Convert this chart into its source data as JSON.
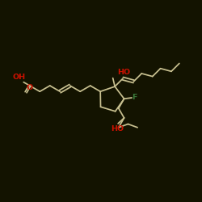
{
  "background": "#131300",
  "bond_color": "#c8c090",
  "oh_color": "#cc1100",
  "f_color": "#3a7a3a",
  "o_color": "#cc1100",
  "font_size": 6.8,
  "lw": 1.25,
  "xlim": [
    0,
    10
  ],
  "ylim": [
    0,
    10
  ]
}
